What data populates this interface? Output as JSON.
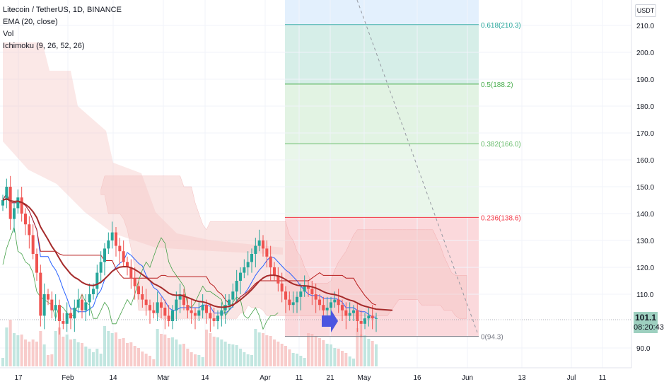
{
  "legend": {
    "symbol": "Litecoin / TetherUS, 1D, BINANCE",
    "ema": "EMA (20, close)",
    "vol": "Vol",
    "ichimoku": "Ichimoku (9, 26, 52, 26)"
  },
  "currency": "USDT",
  "last_price": {
    "value": "101.1",
    "countdown": "08:20:43",
    "color": "#9ed0c0"
  },
  "chart_data": {
    "type": "candlestick",
    "y_axis": {
      "min": 85,
      "max": 215,
      "ticks": [
        "210.0",
        "200.0",
        "190.0",
        "180.0",
        "170.0",
        "160.0",
        "150.0",
        "140.0",
        "130.0",
        "120.0",
        "110.0",
        "90.0"
      ],
      "tick_values": [
        210,
        200,
        190,
        180,
        170,
        160,
        150,
        140,
        130,
        120,
        110,
        90
      ],
      "side": "right"
    },
    "x_axis": {
      "ticks": [
        "17",
        "Feb",
        "14",
        "Mar",
        "14",
        "Apr",
        "11",
        "21",
        "May",
        "16",
        "Jun",
        "13",
        "Jul",
        "11"
      ]
    },
    "fib": {
      "levels": [
        {
          "label": "0.618(210.3)",
          "value": 210.3,
          "color": "#26a69a"
        },
        {
          "label": "0.5(188.2)",
          "value": 188.2,
          "color": "#4caf50"
        },
        {
          "label": "0.382(166.0)",
          "value": 166.0,
          "color": "#66bb6a"
        },
        {
          "label": "0.236(138.6)",
          "value": 138.6,
          "color": "#f23645"
        },
        {
          "label": "0(94.3)",
          "value": 94.3,
          "color": "#787b86"
        }
      ],
      "zone_colors": [
        "#e3f0fd",
        "#d6eee8",
        "#e2f3e3",
        "#e9f6ea",
        "#fbd9dc"
      ]
    },
    "close": [
      145,
      150,
      138,
      142,
      146,
      140,
      136,
      132,
      125,
      118,
      102,
      110,
      108,
      104,
      106,
      100,
      99,
      103,
      101,
      105,
      108,
      104,
      107,
      110,
      112,
      118,
      122,
      127,
      130,
      133,
      128,
      126,
      122,
      120,
      116,
      113,
      110,
      108,
      106,
      104,
      103,
      107,
      105,
      102,
      100,
      104,
      108,
      110,
      106,
      104,
      103,
      102,
      104,
      106,
      103,
      101,
      100,
      102,
      104,
      106,
      108,
      111,
      115,
      118,
      120,
      122,
      125,
      128,
      130,
      127,
      124,
      120,
      117,
      114,
      111,
      108,
      106,
      107,
      109,
      111,
      113,
      112,
      110,
      108,
      106,
      104,
      105,
      107,
      108,
      106,
      104,
      102,
      103,
      104,
      100,
      99,
      101,
      102,
      101,
      101.1
    ],
    "series": [
      {
        "name": "EMA (20, close)",
        "color": "#a52a2a"
      }
    ]
  }
}
